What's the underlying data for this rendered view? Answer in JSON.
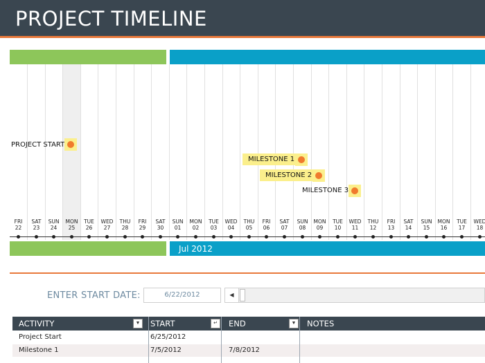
{
  "header": {
    "title": "PROJECT TIMELINE"
  },
  "timeline": {
    "month_label": "Jul 2012",
    "days": [
      {
        "dow": "FRI",
        "date": "22"
      },
      {
        "dow": "SAT",
        "date": "23"
      },
      {
        "dow": "SUN",
        "date": "24"
      },
      {
        "dow": "MON",
        "date": "25"
      },
      {
        "dow": "TUE",
        "date": "26"
      },
      {
        "dow": "WED",
        "date": "27"
      },
      {
        "dow": "THU",
        "date": "28"
      },
      {
        "dow": "FRI",
        "date": "29"
      },
      {
        "dow": "SAT",
        "date": "30"
      },
      {
        "dow": "SUN",
        "date": "01"
      },
      {
        "dow": "MON",
        "date": "02"
      },
      {
        "dow": "TUE",
        "date": "03"
      },
      {
        "dow": "WED",
        "date": "04"
      },
      {
        "dow": "THU",
        "date": "05"
      },
      {
        "dow": "FRI",
        "date": "06"
      },
      {
        "dow": "SAT",
        "date": "07"
      },
      {
        "dow": "SUN",
        "date": "08"
      },
      {
        "dow": "MON",
        "date": "09"
      },
      {
        "dow": "TUE",
        "date": "10"
      },
      {
        "dow": "WED",
        "date": "11"
      },
      {
        "dow": "THU",
        "date": "12"
      },
      {
        "dow": "FRI",
        "date": "13"
      },
      {
        "dow": "SAT",
        "date": "14"
      },
      {
        "dow": "SUN",
        "date": "15"
      },
      {
        "dow": "MON",
        "date": "16"
      },
      {
        "dow": "TUE",
        "date": "17"
      },
      {
        "dow": "WED",
        "date": "18"
      }
    ],
    "markers": [
      {
        "label": "PROJECT START"
      },
      {
        "label": "MILESTONE 1"
      },
      {
        "label": "MILESTONE 2"
      },
      {
        "label": "MILESTONE 3"
      }
    ]
  },
  "controls": {
    "start_label": "ENTER START DATE:",
    "start_value": "6/22/2012"
  },
  "table": {
    "headers": {
      "activity": "ACTIVITY",
      "start": "START",
      "end": "END",
      "notes": "NOTES"
    },
    "rows": [
      {
        "activity": "Project Start",
        "start": "6/25/2012",
        "end": ""
      },
      {
        "activity": "Milestone 1",
        "start": "7/5/2012",
        "end": "7/8/2012"
      }
    ]
  },
  "colors": {
    "header_bg": "#3a4650",
    "accent_orange": "#e8783a",
    "band_green": "#8dc65a",
    "band_blue": "#0aa0c8",
    "highlight_yellow": "#fbef8c",
    "marker_dot": "#f07a2d"
  }
}
